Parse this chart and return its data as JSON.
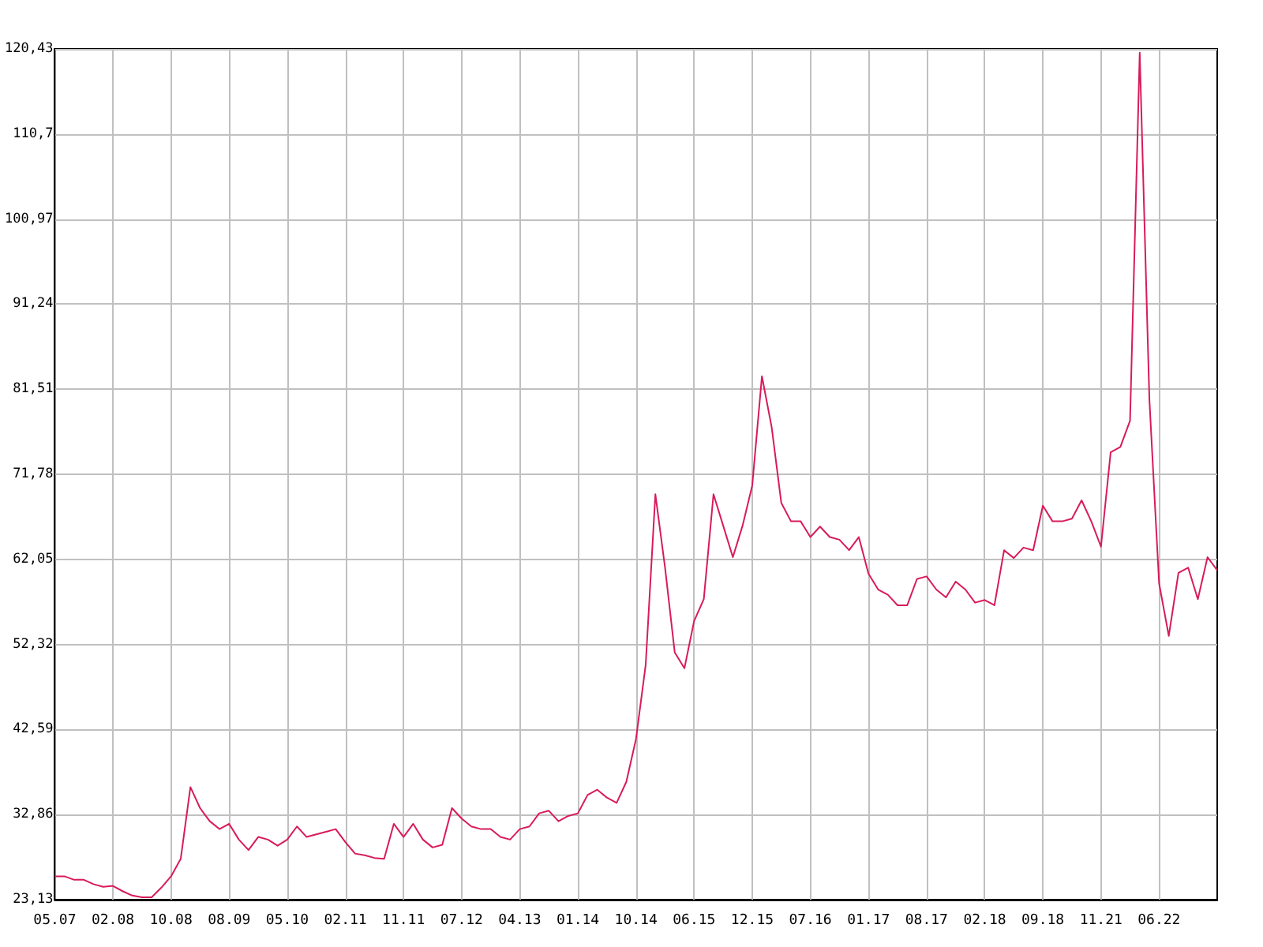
{
  "chart_data": {
    "type": "line",
    "categories": [
      "05.07",
      null,
      null,
      null,
      null,
      null,
      "02.08",
      null,
      null,
      null,
      null,
      null,
      "10.08",
      null,
      null,
      null,
      null,
      null,
      "08.09",
      null,
      null,
      null,
      null,
      null,
      "05.10",
      null,
      null,
      null,
      null,
      null,
      "02.11",
      null,
      null,
      null,
      null,
      null,
      "11.11",
      null,
      null,
      null,
      null,
      null,
      "07.12",
      null,
      null,
      null,
      null,
      null,
      "04.13",
      null,
      null,
      null,
      null,
      null,
      "01.14",
      null,
      null,
      null,
      null,
      null,
      "10.14",
      null,
      null,
      null,
      null,
      null,
      "06.15",
      null,
      null,
      null,
      null,
      null,
      "12.15",
      null,
      null,
      null,
      null,
      null,
      "07.16",
      null,
      null,
      null,
      null,
      null,
      "01.17",
      null,
      null,
      null,
      null,
      null,
      "08.17",
      null,
      null,
      null,
      null,
      null,
      "02.18",
      null,
      null,
      null,
      null,
      null,
      "09.18",
      null,
      null,
      null,
      null,
      null,
      "11.21",
      null,
      null,
      null,
      null,
      null,
      "06.22",
      null,
      null,
      null,
      null,
      null,
      null
    ],
    "series": [
      {
        "color": "#d81b5a",
        "values": [
          25.8,
          25.8,
          25.4,
          25.4,
          24.9,
          24.6,
          24.7,
          24.1,
          23.6,
          23.4,
          23.4,
          24.5,
          25.8,
          27.8,
          36.0,
          33.6,
          32.1,
          31.2,
          31.8,
          30.0,
          28.8,
          30.3,
          30.0,
          29.3,
          30.0,
          31.5,
          30.3,
          30.6,
          30.9,
          31.2,
          29.7,
          28.4,
          28.2,
          27.9,
          27.8,
          31.8,
          30.3,
          31.8,
          30.0,
          29.1,
          29.4,
          33.6,
          32.4,
          31.5,
          31.2,
          31.2,
          30.3,
          30.0,
          31.2,
          31.5,
          33.0,
          33.3,
          32.1,
          32.7,
          33.0,
          35.1,
          35.7,
          34.8,
          34.2,
          36.6,
          41.5,
          50.0,
          69.5,
          61.1,
          51.4,
          49.6,
          55.0,
          57.5,
          69.5,
          65.9,
          62.3,
          65.9,
          70.5,
          83.0,
          77.2,
          68.5,
          66.4,
          66.4,
          64.6,
          65.8,
          64.6,
          64.3,
          63.1,
          64.6,
          60.4,
          58.6,
          58.0,
          56.8,
          56.8,
          59.8,
          60.1,
          58.6,
          57.7,
          59.5,
          58.6,
          57.1,
          57.4,
          56.8,
          63.1,
          62.2,
          63.4,
          63.1,
          68.2,
          66.4,
          66.4,
          66.7,
          68.8,
          66.4,
          63.5,
          74.3,
          74.9,
          77.9,
          120.0,
          80.3,
          59.3,
          53.3,
          60.5,
          61.1,
          57.5,
          62.3,
          60.8
        ]
      }
    ],
    "ylim": [
      23.13,
      120.43
    ],
    "yticks": [
      {
        "value": 23.13,
        "label": "23,13"
      },
      {
        "value": 32.86,
        "label": "32,86"
      },
      {
        "value": 42.59,
        "label": "42,59"
      },
      {
        "value": 52.32,
        "label": "52,32"
      },
      {
        "value": 62.05,
        "label": "62,05"
      },
      {
        "value": 71.78,
        "label": "71,78"
      },
      {
        "value": 81.51,
        "label": "81,51"
      },
      {
        "value": 91.24,
        "label": "91,24"
      },
      {
        "value": 100.97,
        "label": "100,97"
      },
      {
        "value": 110.7,
        "label": "110,7"
      },
      {
        "value": 120.43,
        "label": "120,43"
      }
    ],
    "grid": true
  }
}
